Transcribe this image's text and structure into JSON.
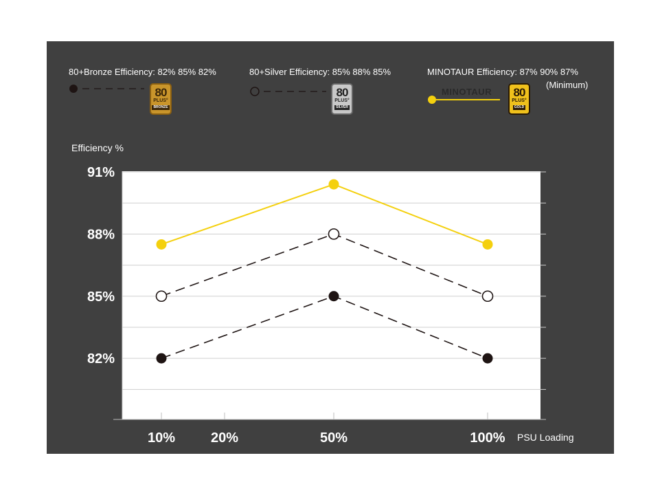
{
  "legend": {
    "bronze": {
      "text": "80+Bronze Efficiency: 82% 85% 82%",
      "badge_num": "80",
      "badge_plus": "PLUS°",
      "badge_tier": "BRONZE",
      "color": "#1e1413",
      "badge_color": "#c9952b"
    },
    "silver": {
      "text": "80+Silver Efficiency: 85% 88% 85%",
      "badge_num": "80",
      "badge_plus": "PLUS°",
      "badge_tier": "SILVER",
      "color": "#1e1413",
      "badge_color": "#b5b5b5"
    },
    "minotaur": {
      "text": "MINOTAUR Efficiency:  87% 90% 87%",
      "subtext": "(Minimum)",
      "logo_text": "MINOTAUR",
      "badge_num": "80",
      "badge_plus": "PLUS°",
      "badge_tier": "GOLD",
      "color": "#f4d00e",
      "badge_color": "#e3b014"
    }
  },
  "chart_data": {
    "type": "line",
    "ylabel": "Efficiency %",
    "xlabel": "PSU Loading",
    "x_ticks": [
      "10%",
      "20%",
      "50%",
      "100%"
    ],
    "y_ticks": [
      "91%",
      "88%",
      "85%",
      "82%"
    ],
    "ylim": [
      79,
      91
    ],
    "grid": true,
    "x": [
      "10%",
      "50%",
      "100%"
    ],
    "series": [
      {
        "name": "MINOTAUR",
        "values": [
          87.5,
          90.4,
          87.5
        ],
        "color": "#f4d00e",
        "style": "solid",
        "marker": "filled"
      },
      {
        "name": "80+Silver",
        "values": [
          85,
          88,
          85
        ],
        "color": "#1e1413",
        "style": "dashed",
        "marker": "hollow"
      },
      {
        "name": "80+Bronze",
        "values": [
          82,
          85,
          82
        ],
        "color": "#1e1413",
        "style": "dashed",
        "marker": "filled"
      }
    ]
  }
}
